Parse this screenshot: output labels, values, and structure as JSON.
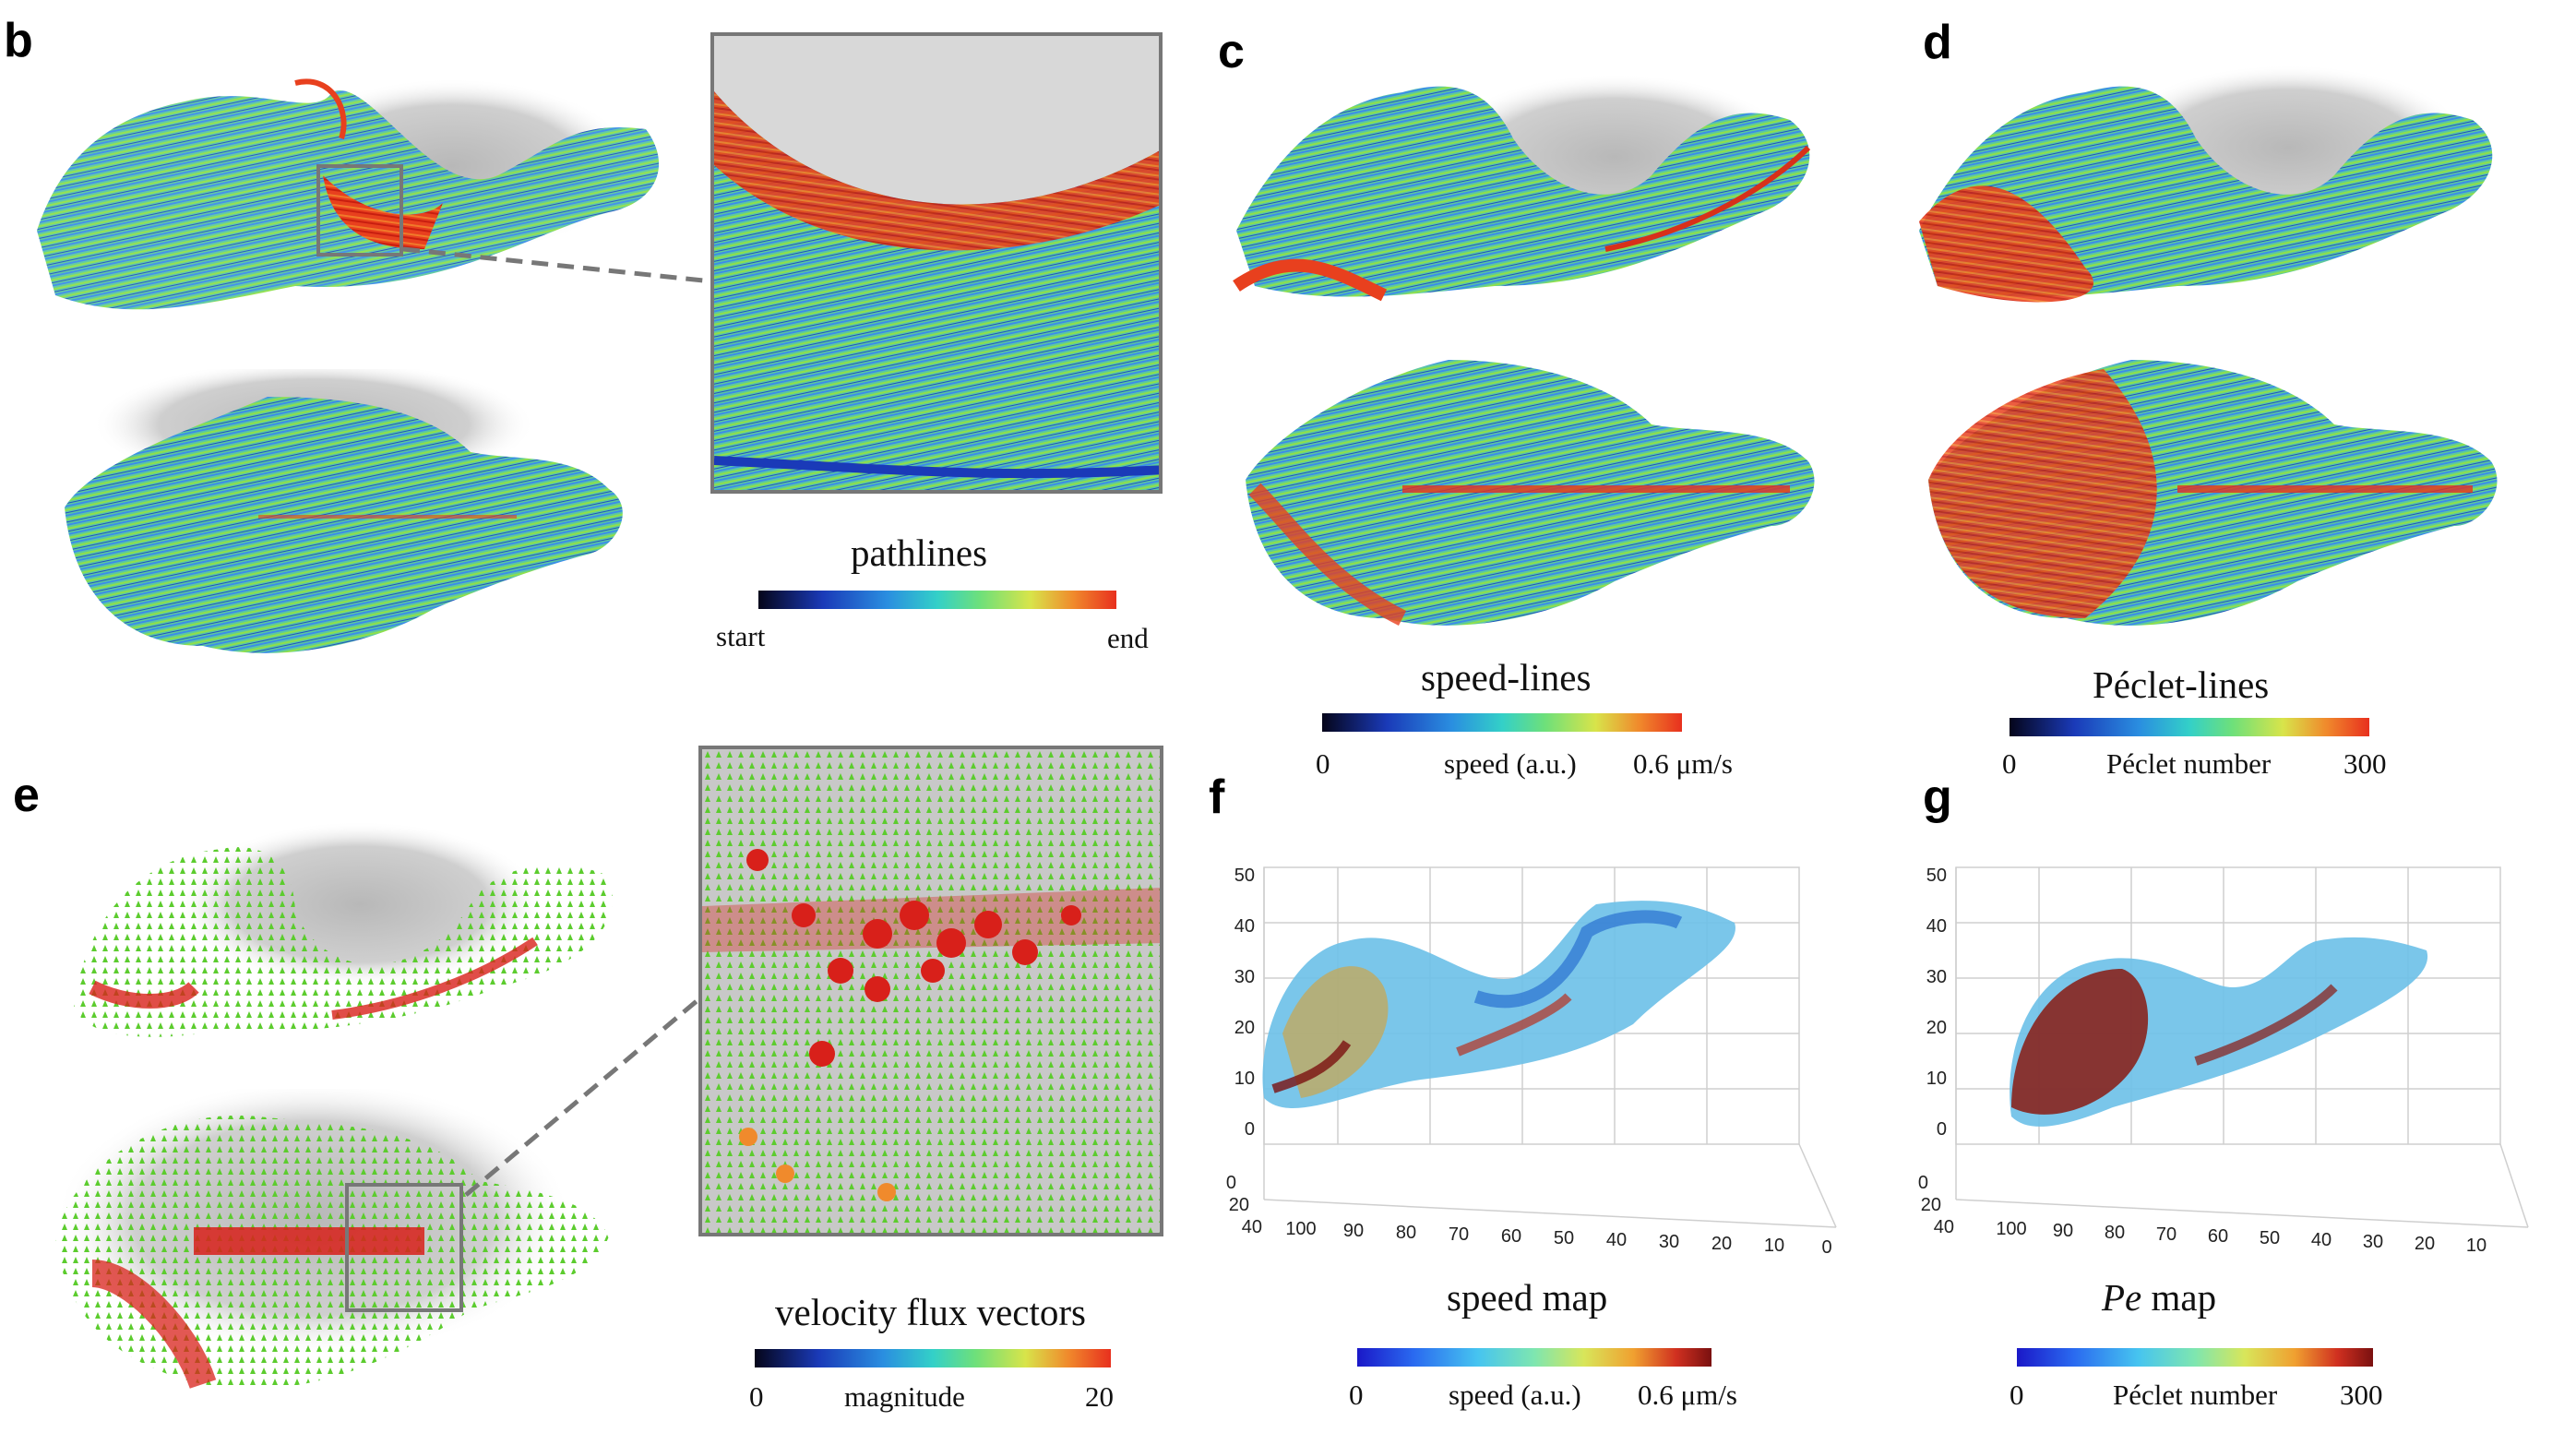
{
  "panels": {
    "b": {
      "letter": "b",
      "label": "pathlines",
      "min": "start",
      "max": "end"
    },
    "c": {
      "letter": "c",
      "label": "speed-lines",
      "min": "0",
      "mid": "speed (a.u.)",
      "max": "0.6 μm/s"
    },
    "d": {
      "letter": "d",
      "label": "Péclet-lines",
      "min": "0",
      "mid": "Péclet number",
      "max": "300"
    },
    "e": {
      "letter": "e",
      "label": "velocity flux vectors",
      "min": "0",
      "mid": "magnitude",
      "max": "20"
    },
    "f": {
      "letter": "f",
      "label": "speed map",
      "min": "0",
      "mid": "speed (a.u.)",
      "max": "0.6 μm/s",
      "z_ticks": [
        "0",
        "10",
        "20",
        "30",
        "40",
        "50"
      ],
      "x_ticks": [
        "100",
        "90",
        "80",
        "70",
        "60",
        "50",
        "40",
        "30",
        "20",
        "10",
        "0"
      ],
      "y_ticks": [
        "0",
        "20",
        "40"
      ]
    },
    "g": {
      "letter": "g",
      "label_italic": "Pe",
      "label_rest": " map",
      "min": "0",
      "mid": "Péclet number",
      "max": "300",
      "z_ticks": [
        "0",
        "10",
        "20",
        "30",
        "40",
        "50"
      ],
      "x_ticks": [
        "100",
        "90",
        "80",
        "70",
        "60",
        "50",
        "40",
        "30",
        "20",
        "10"
      ],
      "y_ticks": [
        "0",
        "20",
        "40"
      ]
    }
  },
  "colors": {
    "path_gradient": [
      "#05051a",
      "#1a3ab8",
      "#2a8ee0",
      "#33d0c8",
      "#6ee07a",
      "#d8e44a",
      "#f08a2c",
      "#e8301e"
    ],
    "map_gradient": [
      "#1a18c8",
      "#2a6af0",
      "#46c4f0",
      "#7ee6b0",
      "#d8e65a",
      "#f0a030",
      "#d03020",
      "#7a1010"
    ],
    "frame": "#777777"
  }
}
